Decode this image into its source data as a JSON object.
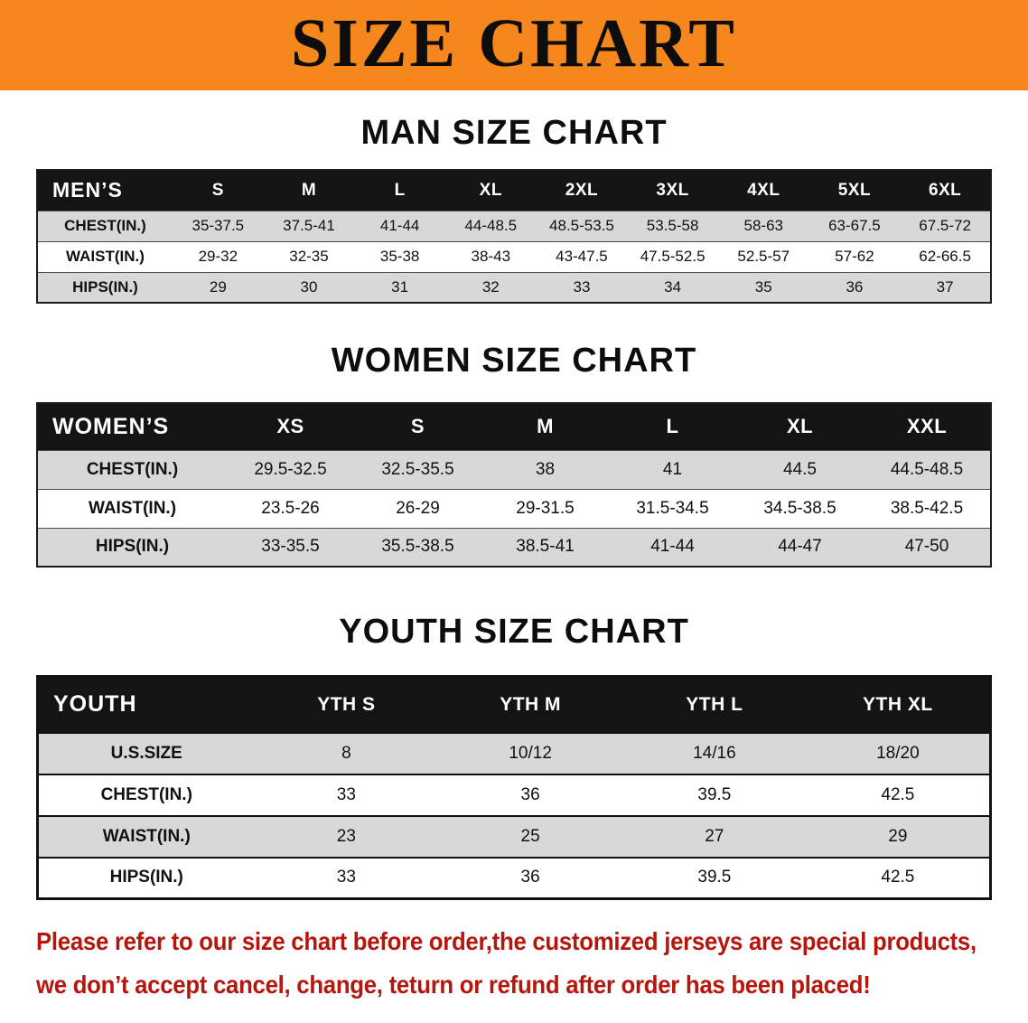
{
  "banner": {
    "title": "SIZE CHART",
    "bg_color": "#F6871C"
  },
  "men": {
    "heading": "MAN SIZE CHART",
    "header": [
      "MEN’S",
      "S",
      "M",
      "L",
      "XL",
      "2XL",
      "3XL",
      "4XL",
      "5XL",
      "6XL"
    ],
    "rows": [
      [
        "CHEST(IN.)",
        "35-37.5",
        "37.5-41",
        "41-44",
        "44-48.5",
        "48.5-53.5",
        "53.5-58",
        "58-63",
        "63-67.5",
        "67.5-72"
      ],
      [
        "WAIST(IN.)",
        "29-32",
        "32-35",
        "35-38",
        "38-43",
        "43-47.5",
        "47.5-52.5",
        "52.5-57",
        "57-62",
        "62-66.5"
      ],
      [
        "HIPS(IN.)",
        "29",
        "30",
        "31",
        "32",
        "33",
        "34",
        "35",
        "36",
        "37"
      ]
    ]
  },
  "women": {
    "heading": "WOMEN SIZE CHART",
    "header": [
      "WOMEN’S",
      "XS",
      "S",
      "M",
      "L",
      "XL",
      "XXL"
    ],
    "rows": [
      [
        "CHEST(IN.)",
        "29.5-32.5",
        "32.5-35.5",
        "38",
        "41",
        "44.5",
        "44.5-48.5"
      ],
      [
        "WAIST(IN.)",
        "23.5-26",
        "26-29",
        "29-31.5",
        "31.5-34.5",
        "34.5-38.5",
        "38.5-42.5"
      ],
      [
        "HIPS(IN.)",
        "33-35.5",
        "35.5-38.5",
        "38.5-41",
        "41-44",
        "44-47",
        "47-50"
      ]
    ]
  },
  "youth": {
    "heading": "YOUTH SIZE CHART",
    "header": [
      "YOUTH",
      "YTH S",
      "YTH M",
      "YTH L",
      "YTH XL"
    ],
    "rows": [
      [
        "U.S.SIZE",
        "8",
        "10/12",
        "14/16",
        "18/20"
      ],
      [
        "CHEST(IN.)",
        "33",
        "36",
        "39.5",
        "42.5"
      ],
      [
        "WAIST(IN.)",
        "23",
        "25",
        "27",
        "29"
      ],
      [
        "HIPS(IN.)",
        "33",
        "36",
        "39.5",
        "42.5"
      ]
    ]
  },
  "footer": {
    "line1": "Please refer to our size chart before order,the customized jerseys are special products,",
    "line2": "we don’t accept cancel, change, teturn or refund after order has been placed!",
    "text_color": "#B5170E"
  }
}
